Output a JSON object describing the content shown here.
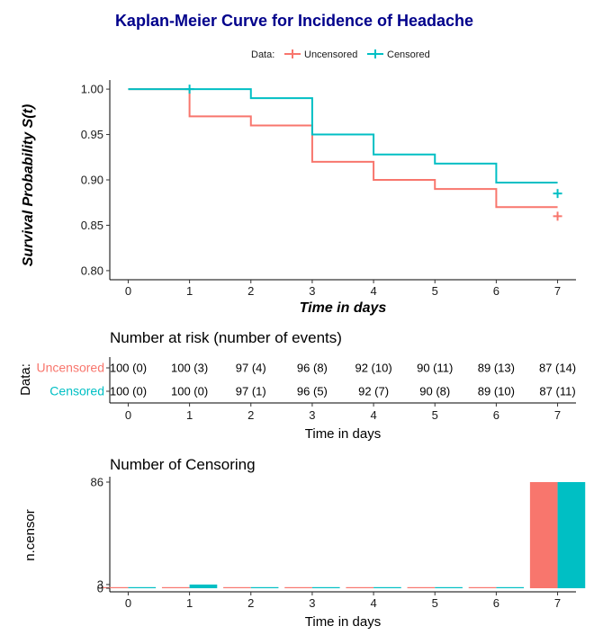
{
  "colors": {
    "uncensored": "#F8766D",
    "censored": "#00BFC4",
    "title": "#00008B"
  },
  "chart_data": [
    {
      "type": "line",
      "title": "Kaplan-Meier Curve for Incidence of Headache",
      "xlabel": "Time in days",
      "ylabel": "Survival Probability S(t)",
      "xlim": [
        -0.3,
        7.3
      ],
      "ylim": [
        0.79,
        1.01
      ],
      "x_ticks": [
        0,
        1,
        2,
        3,
        4,
        5,
        6,
        7
      ],
      "y_ticks": [
        0.8,
        0.85,
        0.9,
        0.95,
        1.0
      ],
      "y_tick_labels": [
        "0.80",
        "0.85",
        "0.90",
        "0.95",
        "1.00"
      ],
      "legend": {
        "title": "Data:",
        "position": "top",
        "labels": [
          "Uncensored",
          "Censored"
        ]
      },
      "series": [
        {
          "name": "Uncensored",
          "color": "#F8766D",
          "x": [
            0,
            1,
            2,
            3,
            4,
            5,
            6,
            7
          ],
          "y": [
            1.0,
            0.97,
            0.96,
            0.92,
            0.9,
            0.89,
            0.87,
            0.87
          ],
          "censor_marks": [
            {
              "x": 7,
              "y": 0.86
            }
          ]
        },
        {
          "name": "Censored",
          "color": "#00BFC4",
          "x": [
            0,
            1,
            2,
            3,
            4,
            5,
            6,
            7
          ],
          "y": [
            1.0,
            1.0,
            0.99,
            0.95,
            0.928,
            0.918,
            0.897,
            0.897
          ],
          "censor_marks": [
            {
              "x": 1,
              "y": 1.0
            },
            {
              "x": 7,
              "y": 0.885
            }
          ]
        }
      ]
    },
    {
      "type": "table",
      "title": "Number at risk (number of events)",
      "xlabel": "Time in days",
      "ylabel": "Data:",
      "x_ticks": [
        0,
        1,
        2,
        3,
        4,
        5,
        6,
        7
      ],
      "rows": [
        {
          "name": "Uncensored",
          "color": "#F8766D",
          "cells": [
            "100 (0)",
            "100 (3)",
            "97 (4)",
            "96 (8)",
            "92 (10)",
            "90 (11)",
            "89 (13)",
            "87 (14)"
          ]
        },
        {
          "name": "Censored",
          "color": "#00BFC4",
          "cells": [
            "100 (0)",
            "100 (0)",
            "97 (1)",
            "96 (5)",
            "92 (7)",
            "90 (8)",
            "89 (10)",
            "87 (11)"
          ]
        }
      ]
    },
    {
      "type": "bar",
      "title": "Number of Censoring",
      "xlabel": "Time in days",
      "ylabel": "n.censor",
      "categories": [
        0,
        1,
        2,
        3,
        4,
        5,
        6,
        7
      ],
      "y_ticks": [
        0,
        3,
        86
      ],
      "y_tick_labels": [
        "0",
        "3",
        "86"
      ],
      "ylim": [
        -0.5,
        90
      ],
      "series": [
        {
          "name": "Uncensored",
          "color": "#F8766D",
          "values": [
            0,
            0,
            0,
            0,
            0,
            0,
            0,
            86
          ]
        },
        {
          "name": "Censored",
          "color": "#00BFC4",
          "values": [
            0,
            3,
            0,
            0,
            0,
            0,
            0,
            86
          ]
        }
      ]
    }
  ]
}
